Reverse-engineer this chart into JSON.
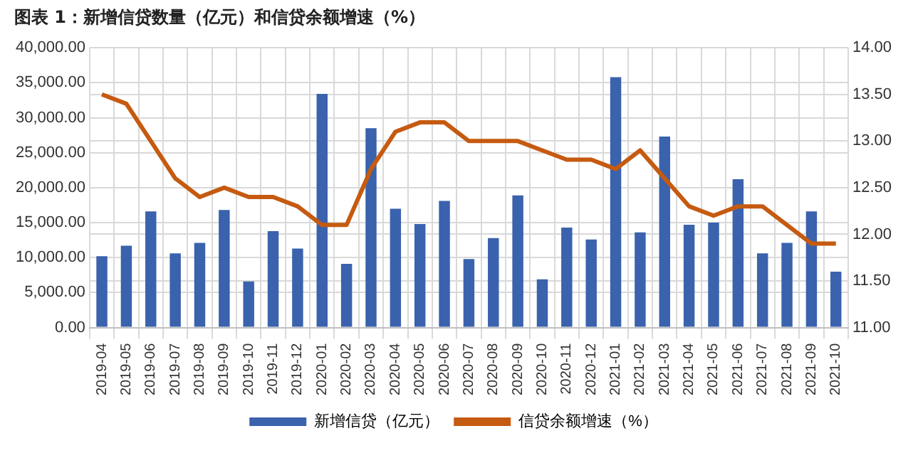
{
  "chart_data": {
    "type": "bar",
    "title": "图表 1：新增信贷数量（亿元）和信贷余额增速（%）",
    "categories": [
      "2019-04",
      "2019-05",
      "2019-06",
      "2019-07",
      "2019-08",
      "2019-09",
      "2019-10",
      "2019-11",
      "2019-12",
      "2020-01",
      "2020-02",
      "2020-03",
      "2020-04",
      "2020-05",
      "2020-06",
      "2020-07",
      "2020-08",
      "2020-09",
      "2020-10",
      "2020-11",
      "2020-12",
      "2021-01",
      "2021-02",
      "2021-03",
      "2021-04",
      "2021-05",
      "2021-06",
      "2021-07",
      "2021-08",
      "2021-09",
      "2021-10"
    ],
    "series": [
      {
        "name": "新增信贷（亿元）",
        "color": "#3a62ad",
        "values": [
          10200,
          11700,
          16600,
          10600,
          12100,
          16800,
          6600,
          13800,
          11300,
          33400,
          9100,
          28500,
          17000,
          14800,
          18100,
          9800,
          12800,
          18900,
          6900,
          14300,
          12600,
          35800,
          13600,
          27300,
          14700,
          15000,
          21200,
          10600,
          12100,
          16600,
          8000
        ]
      },
      {
        "name": "信贷余额增速（%）",
        "type": "line",
        "axis": "y2",
        "color": "#c55a11",
        "values": [
          13.5,
          13.4,
          13.0,
          12.6,
          12.4,
          12.5,
          12.4,
          12.4,
          12.3,
          12.1,
          12.1,
          12.7,
          13.1,
          13.2,
          13.2,
          13.0,
          13.0,
          13.0,
          12.9,
          12.8,
          12.8,
          12.7,
          12.9,
          12.6,
          12.3,
          12.2,
          12.3,
          12.3,
          12.1,
          11.9,
          11.9
        ]
      }
    ],
    "ylim": [
      0,
      40000
    ],
    "yticks": [
      {
        "value": 0,
        "label": "0.00"
      },
      {
        "value": 5000,
        "label": "5,000.00"
      },
      {
        "value": 10000,
        "label": "10,000.00"
      },
      {
        "value": 15000,
        "label": "15,000.00"
      },
      {
        "value": 20000,
        "label": "20,000.00"
      },
      {
        "value": 25000,
        "label": "25,000.00"
      },
      {
        "value": 30000,
        "label": "30,000.00"
      },
      {
        "value": 35000,
        "label": "35,000.00"
      },
      {
        "value": 40000,
        "label": "40,000.00"
      }
    ],
    "y2lim": [
      11,
      14
    ],
    "y2ticks": [
      {
        "value": 11,
        "label": "11.00"
      },
      {
        "value": 11.5,
        "label": "11.50"
      },
      {
        "value": 12,
        "label": "12.00"
      },
      {
        "value": 12.5,
        "label": "12.50"
      },
      {
        "value": 13,
        "label": "13.00"
      },
      {
        "value": 13.5,
        "label": "13.50"
      },
      {
        "value": 14,
        "label": "14.00"
      }
    ],
    "grid": true,
    "legend": "bottom",
    "marker": "none"
  }
}
